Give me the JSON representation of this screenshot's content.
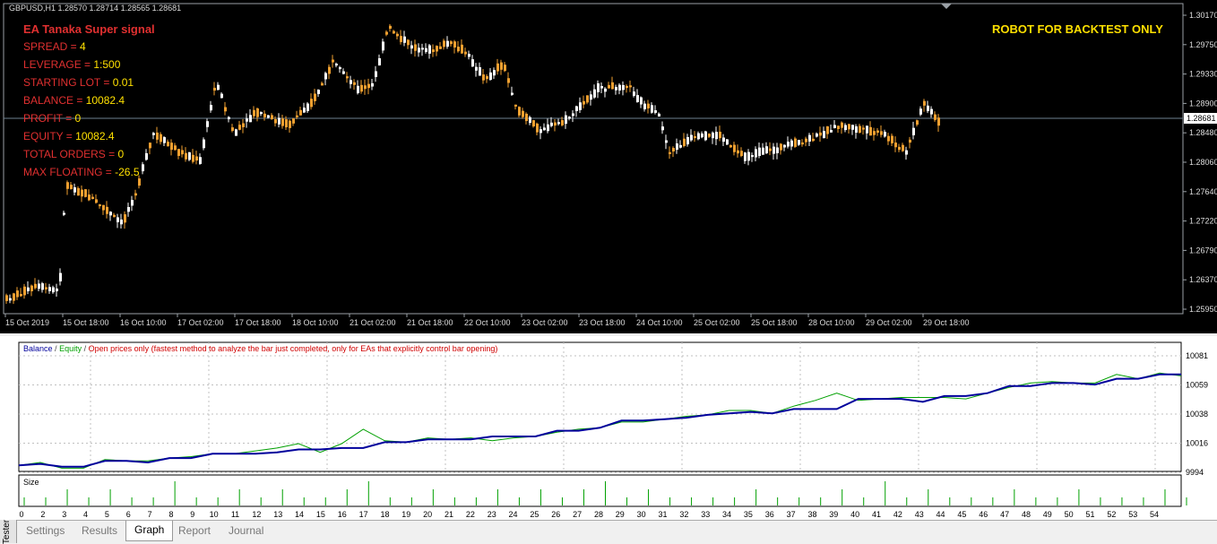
{
  "chart": {
    "symbol": "GBPUSD,H1  1.28570 1.28714 1.28565 1.28681",
    "ea_title": "EA Tanaka Super signal",
    "robot_notice": "ROBOT FOR BACKTEST ONLY",
    "info": [
      {
        "label": "SPREAD = ",
        "value": "4"
      },
      {
        "label": "LEVERAGE = ",
        "value": "1:500"
      },
      {
        "label": "STARTING LOT = ",
        "value": "0.01"
      },
      {
        "label": "BALANCE = ",
        "value": "10082.4"
      },
      {
        "label": "PROFIT = ",
        "value": "0"
      },
      {
        "label": "EQUITY = ",
        "value": "10082.4"
      },
      {
        "label": "TOTAL ORDERS = ",
        "value": "0"
      },
      {
        "label": "MAX FLOATING = ",
        "value": "-26.5"
      }
    ],
    "price_ticks": [
      "1.30170",
      "1.29750",
      "1.29330",
      "1.28900",
      "1.28480",
      "1.28060",
      "1.27640",
      "1.27220",
      "1.26790",
      "1.26370",
      "1.25950"
    ],
    "current_price": "1.28681",
    "time_labels": [
      "15 Oct 2019",
      "15 Oct 18:00",
      "16 Oct 10:00",
      "17 Oct 02:00",
      "17 Oct 18:00",
      "18 Oct 10:00",
      "21 Oct 02:00",
      "21 Oct 18:00",
      "22 Oct 10:00",
      "23 Oct 02:00",
      "23 Oct 18:00",
      "24 Oct 10:00",
      "25 Oct 02:00",
      "25 Oct 18:00",
      "28 Oct 10:00",
      "29 Oct 02:00",
      "29 Oct 18:00"
    ],
    "colors": {
      "bull": "#ffffff",
      "bear": "#f0a030",
      "background": "#000000"
    }
  },
  "graph": {
    "legend_balance": "Balance",
    "legend_equity": "Equity",
    "legend_mode": "Open prices only (fastest method to analyze the bar just completed, only for EAs that explicitly control bar opening)",
    "y_ticks": [
      "10081",
      "10059",
      "10038",
      "10016",
      "9994"
    ],
    "size_label": "Size",
    "x_ticks": [
      "0",
      "2",
      "3",
      "4",
      "5",
      "6",
      "7",
      "8",
      "9",
      "10",
      "11",
      "12",
      "13",
      "14",
      "15",
      "16",
      "17",
      "18",
      "19",
      "20",
      "21",
      "22",
      "23",
      "24",
      "25",
      "26",
      "27",
      "28",
      "29",
      "30",
      "31",
      "32",
      "33",
      "34",
      "35",
      "36",
      "37",
      "38",
      "39",
      "40",
      "41",
      "42",
      "43",
      "44",
      "45",
      "46",
      "47",
      "48",
      "49",
      "50",
      "51",
      "52",
      "53",
      "54"
    ],
    "colors": {
      "balance": "#00009c",
      "equity": "#00a000",
      "size": "#00a000"
    }
  },
  "chart_data": {
    "type": "line",
    "x": [
      0,
      1,
      2,
      3,
      4,
      5,
      6,
      7,
      8,
      9,
      10,
      11,
      12,
      13,
      14,
      15,
      16,
      17,
      18,
      19,
      20,
      21,
      22,
      23,
      24,
      25,
      26,
      27,
      28,
      29,
      30,
      31,
      32,
      33,
      34,
      35,
      36,
      37,
      38,
      39,
      40,
      41,
      42,
      43,
      44,
      45,
      46,
      47,
      48,
      49,
      50,
      51,
      52,
      53,
      54
    ],
    "series": [
      {
        "name": "Balance",
        "values": [
          9997,
          9998,
          9996,
          9996,
          10000,
          10000,
          9999,
          10002,
          10002,
          10005,
          10005,
          10005,
          10006,
          10008,
          10008,
          10009,
          10009,
          10013,
          10013,
          10015,
          10015,
          10015,
          10017,
          10017,
          10017,
          10021,
          10021,
          10023,
          10028,
          10028,
          10029,
          10030,
          10032,
          10033,
          10034,
          10033,
          10036,
          10036,
          10036,
          10043,
          10043,
          10043,
          10041,
          10045,
          10045,
          10047,
          10052,
          10052,
          10054,
          10054,
          10053,
          10057,
          10057,
          10060,
          10060
        ]
      },
      {
        "name": "Equity",
        "values": [
          9997,
          9999,
          9995,
          9995,
          10001,
          10000,
          10000,
          10002,
          10003,
          10005,
          10005,
          10007,
          10009,
          10012,
          10006,
          10012,
          10022,
          10014,
          10013,
          10016,
          10015,
          10016,
          10014,
          10016,
          10017,
          10020,
          10022,
          10023,
          10027,
          10027,
          10029,
          10031,
          10032,
          10035,
          10035,
          10033,
          10038,
          10042,
          10047,
          10042,
          10043,
          10044,
          10044,
          10044,
          10043,
          10047,
          10051,
          10054,
          10055,
          10054,
          10054,
          10060,
          10057,
          10061,
          10059
        ]
      }
    ],
    "size": [
      0.01,
      0.01,
      0.02,
      0.01,
      0.02,
      0.01,
      0.01,
      0.03,
      0.01,
      0.01,
      0.02,
      0.01,
      0.02,
      0.01,
      0.01,
      0.02,
      0.03,
      0.01,
      0.01,
      0.02,
      0.01,
      0.01,
      0.02,
      0.01,
      0.02,
      0.01,
      0.02,
      0.03,
      0.01,
      0.02,
      0.01,
      0.01,
      0.01,
      0.01,
      0.02,
      0.01,
      0.01,
      0.01,
      0.02,
      0.01,
      0.03,
      0.01,
      0.02,
      0.01,
      0.01,
      0.01,
      0.02,
      0.01,
      0.01,
      0.02,
      0.01,
      0.01,
      0.01,
      0.02,
      0.01
    ],
    "ylabel": "",
    "ylim": [
      9994,
      10081
    ]
  },
  "tabs": {
    "vertical_label": "Tester",
    "items": [
      "Settings",
      "Results",
      "Graph",
      "Report",
      "Journal"
    ],
    "active": "Graph"
  }
}
